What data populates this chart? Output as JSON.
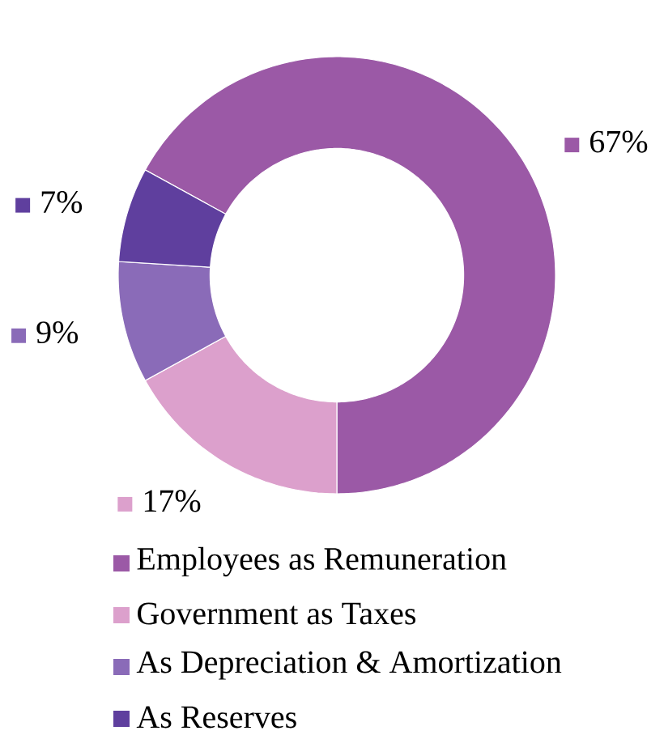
{
  "chart_data": {
    "type": "donut",
    "categories": [
      "Employees as Remuneration",
      "Government as Taxes",
      "As Depreciation & Amortization",
      "As Reserves"
    ],
    "values": [
      67,
      17,
      9,
      7
    ],
    "colors": [
      "#9b59a6",
      "#dca0cc",
      "#8a6bb8",
      "#5f3f9e"
    ],
    "value_labels": [
      "67%",
      "17%",
      "9%",
      "7%"
    ],
    "legend": "bottom"
  }
}
